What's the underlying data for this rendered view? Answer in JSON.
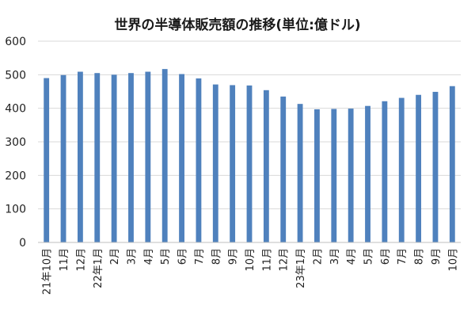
{
  "chart_data": {
    "type": "bar",
    "title": "世界の半導体販売額の推移(単位:億ドル)",
    "xlabel": "",
    "ylabel": "",
    "ylim": [
      0,
      600
    ],
    "yticks": [
      0,
      100,
      200,
      300,
      400,
      500,
      600
    ],
    "grid": true,
    "legend": "none",
    "bar_color": "#4f81bd",
    "categories": [
      "21年10月",
      "11月",
      "12月",
      "22年1月",
      "2月",
      "3月",
      "4月",
      "5月",
      "6月",
      "7月",
      "8月",
      "9月",
      "10月",
      "11月",
      "12月",
      "23年1月",
      "2月",
      "3月",
      "4月",
      "5月",
      "6月",
      "7月",
      "8月",
      "9月",
      "10月"
    ],
    "values": [
      490,
      499,
      509,
      505,
      500,
      505,
      509,
      517,
      502,
      489,
      471,
      469,
      468,
      454,
      435,
      413,
      397,
      398,
      399,
      407,
      421,
      431,
      440,
      449,
      466
    ]
  }
}
